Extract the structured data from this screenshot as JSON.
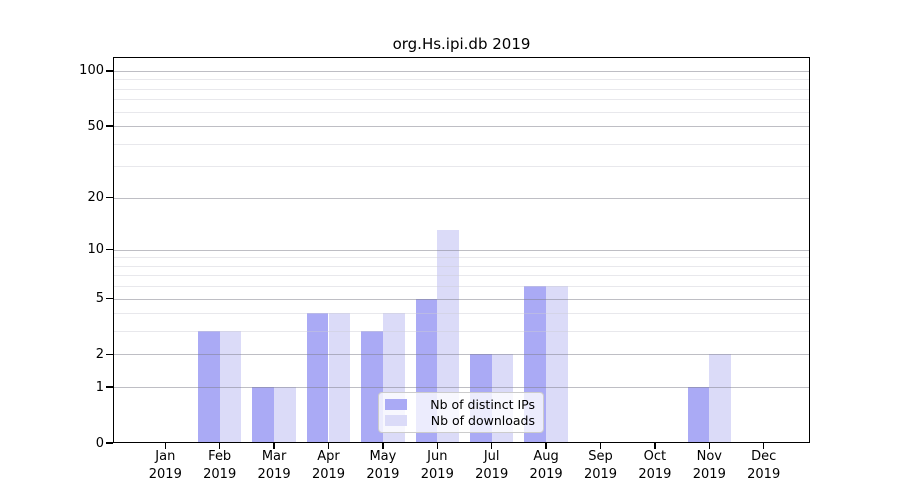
{
  "title": "org.Hs.ipi.db 2019",
  "legend": {
    "items": [
      {
        "label": "Nb of distinct IPs",
        "color": "#aaaaf5"
      },
      {
        "label": "Nb of downloads",
        "color": "#dbdbf8"
      }
    ]
  },
  "chart_data": {
    "type": "bar",
    "title": "org.Hs.ipi.db 2019",
    "categories": [
      "Jan 2019",
      "Feb 2019",
      "Mar 2019",
      "Apr 2019",
      "May 2019",
      "Jun 2019",
      "Jul 2019",
      "Aug 2019",
      "Sep 2019",
      "Oct 2019",
      "Nov 2019",
      "Dec 2019"
    ],
    "series": [
      {
        "name": "Nb of distinct IPs",
        "color": "#aaaaf5",
        "values": [
          0,
          3,
          1,
          4,
          3,
          5,
          2,
          6,
          0,
          0,
          1,
          0
        ]
      },
      {
        "name": "Nb of downloads",
        "color": "#dbdbf8",
        "values": [
          0,
          3,
          1,
          4,
          4,
          13,
          2,
          6,
          0,
          0,
          2,
          0
        ]
      }
    ],
    "xlabel": "",
    "ylabel": "",
    "yscale": "log1p",
    "ylim": [
      0,
      119
    ],
    "y_tick_labels": [
      100,
      50,
      20,
      10,
      5,
      2,
      1,
      0
    ],
    "grid": true,
    "grid_major_values": [
      1,
      2,
      5,
      10,
      20,
      50,
      100
    ],
    "grid_minor_values": [
      3,
      4,
      6,
      7,
      8,
      9,
      30,
      40,
      60,
      70,
      80,
      90
    ],
    "legend_position": "lower center",
    "frame": "full box",
    "colors": {
      "background": "#ffffff",
      "spine": "#000000",
      "grid_major": "#c4c4ca",
      "grid_minor": "#e7e7eb"
    }
  }
}
